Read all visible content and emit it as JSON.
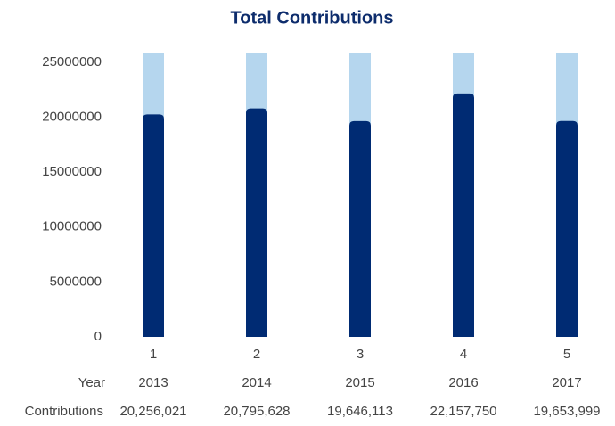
{
  "chart_data": {
    "type": "bar",
    "title": "Total Contributions",
    "categories": [
      "1",
      "2",
      "3",
      "4",
      "5"
    ],
    "values": [
      20256021,
      20795628,
      19646113,
      22157750,
      19653999
    ],
    "value_labels": [
      "20,256,021",
      "20,795,628",
      "19,646,113",
      "22,157,750",
      "19,653,999"
    ],
    "years": [
      "2013",
      "2014",
      "2015",
      "2016",
      "2017"
    ],
    "row_labels": [
      "Year",
      "Contributions"
    ],
    "color": "#002b73",
    "track_color": "#b5d6ee",
    "ylim": [
      0,
      25800000
    ],
    "yticks": [
      0,
      5000000,
      10000000,
      15000000,
      20000000,
      25000000
    ],
    "grid": false
  }
}
